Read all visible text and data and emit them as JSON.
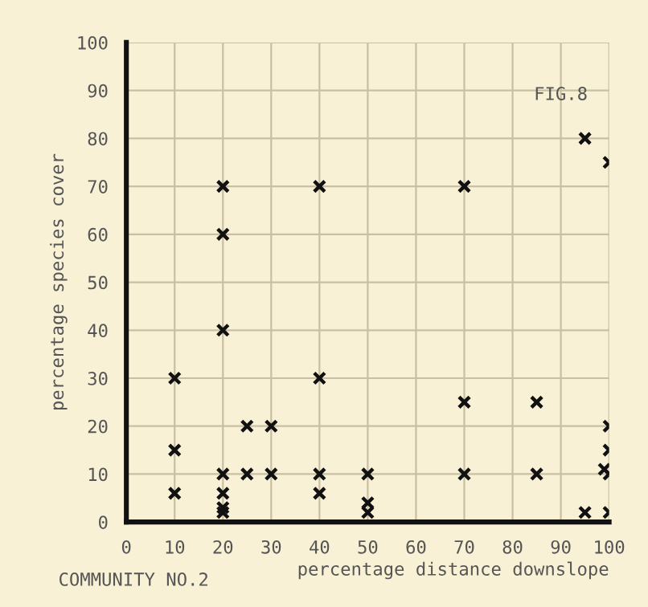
{
  "chart_data": {
    "type": "scatter",
    "xlabel": "percentage distance downslope",
    "ylabel": "percentage species cover",
    "annotations": [
      "FIG.8",
      "COMMUNITY NO.2"
    ],
    "x": [
      10,
      10,
      10,
      20,
      20,
      20,
      20,
      20,
      20,
      20,
      25,
      25,
      30,
      30,
      40,
      40,
      40,
      40,
      50,
      50,
      50,
      70,
      70,
      70,
      85,
      85,
      95,
      95,
      100,
      100,
      100,
      99,
      100,
      100
    ],
    "values": [
      6,
      15,
      30,
      3,
      2,
      6,
      10,
      40,
      60,
      70,
      10,
      20,
      20,
      10,
      30,
      10,
      6,
      70,
      10,
      4,
      2,
      70,
      25,
      10,
      25,
      10,
      2,
      80,
      75,
      20,
      15,
      11,
      10,
      2
    ],
    "color": "#111111",
    "marker": "cross",
    "xlim": [
      0,
      100
    ],
    "ylim": [
      0,
      100
    ],
    "xticks": [
      0,
      10,
      20,
      30,
      40,
      50,
      60,
      70,
      80,
      90,
      100
    ],
    "yticks": [
      0,
      10,
      20,
      30,
      40,
      50,
      60,
      70,
      80,
      90,
      100
    ],
    "grid": true
  }
}
